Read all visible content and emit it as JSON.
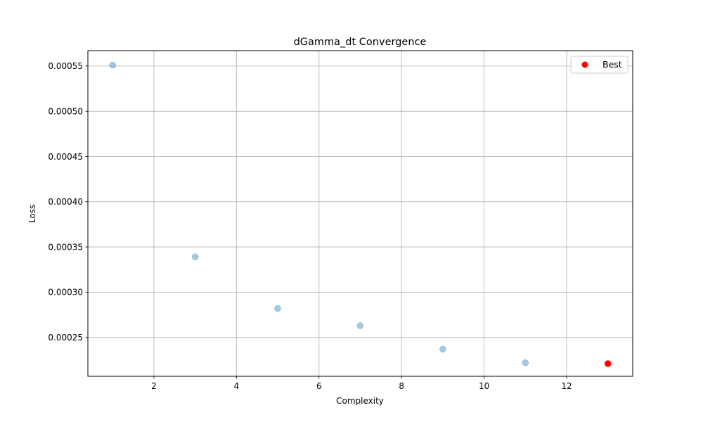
{
  "chart_data": {
    "type": "scatter",
    "title": "dGamma_dt Convergence",
    "xlabel": "Complexity",
    "ylabel": "Loss",
    "xlim": [
      0.4,
      13.6
    ],
    "ylim": [
      0.000207,
      0.000567
    ],
    "xticks": [
      2,
      4,
      6,
      8,
      10,
      12
    ],
    "xtick_labels": [
      "2",
      "4",
      "6",
      "8",
      "10",
      "12"
    ],
    "yticks": [
      0.00025,
      0.0003,
      0.00035,
      0.0004,
      0.00045,
      0.0005,
      0.00055
    ],
    "ytick_labels": [
      "0.00025",
      "0.00030",
      "0.00035",
      "0.00040",
      "0.00045",
      "0.00050",
      "0.00055"
    ],
    "grid": true,
    "legend_position": "top-right",
    "series": [
      {
        "x": [
          1,
          3,
          5,
          7,
          9,
          11
        ],
        "y": [
          0.000551,
          0.000339,
          0.000282,
          0.000263,
          0.000237,
          0.000222
        ],
        "color": "#1f77b4",
        "alpha": 0.4
      },
      {
        "name": "Best",
        "x": [
          13
        ],
        "y": [
          0.000221
        ],
        "color": "#ff0000",
        "alpha": 1
      }
    ]
  }
}
